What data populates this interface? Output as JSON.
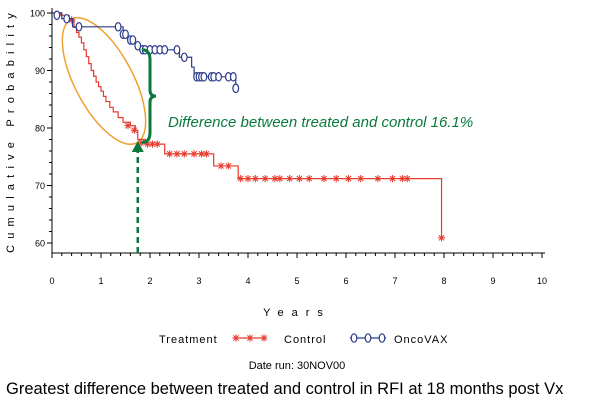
{
  "chart_data": {
    "type": "line",
    "chart_kind": "kaplan-meier step survival curve",
    "ylabel": "Cumulative Probability",
    "xlabel": "Years",
    "xlim": [
      0,
      10
    ],
    "ylim": [
      60,
      100
    ],
    "x_ticks": [
      "0",
      "1",
      "2",
      "3",
      "4",
      "5",
      "6",
      "7",
      "8",
      "9",
      "10"
    ],
    "y_ticks": [
      "60",
      "70",
      "80",
      "90",
      "100"
    ],
    "grid": false,
    "legend": {
      "placement": "bottom",
      "title": "Treatment",
      "entries": [
        "Control",
        "OncoVAX"
      ]
    },
    "series": [
      {
        "name": "Control",
        "color": "#e8392b",
        "marker": "asterisk",
        "steps": [
          [
            0,
            100
          ],
          [
            0.18,
            99.6
          ],
          [
            0.35,
            98.8
          ],
          [
            0.45,
            97.5
          ],
          [
            0.5,
            96.6
          ],
          [
            0.55,
            95.8
          ],
          [
            0.6,
            94.8
          ],
          [
            0.65,
            93.6
          ],
          [
            0.7,
            92.4
          ],
          [
            0.75,
            91.2
          ],
          [
            0.8,
            90.0
          ],
          [
            0.85,
            89.0
          ],
          [
            0.9,
            88.0
          ],
          [
            0.95,
            87.2
          ],
          [
            1.0,
            86.4
          ],
          [
            1.05,
            85.5
          ],
          [
            1.1,
            84.6
          ],
          [
            1.18,
            83.6
          ],
          [
            1.25,
            82.8
          ],
          [
            1.35,
            81.8
          ],
          [
            1.45,
            81.0
          ],
          [
            1.6,
            80.4
          ],
          [
            1.7,
            79.6
          ],
          [
            1.75,
            78.0
          ],
          [
            1.9,
            77.2
          ],
          [
            2.3,
            75.5
          ],
          [
            3.3,
            73.4
          ],
          [
            3.8,
            71.2
          ],
          [
            7.95,
            60.9
          ]
        ],
        "censored": [
          [
            0.4,
            98.8
          ],
          [
            1.55,
            80.4
          ],
          [
            1.68,
            79.6
          ],
          [
            1.82,
            77.4
          ],
          [
            1.95,
            77.2
          ],
          [
            2.05,
            77.2
          ],
          [
            2.15,
            77.2
          ],
          [
            2.4,
            75.5
          ],
          [
            2.55,
            75.5
          ],
          [
            2.7,
            75.5
          ],
          [
            2.9,
            75.5
          ],
          [
            3.05,
            75.5
          ],
          [
            3.15,
            75.5
          ],
          [
            3.45,
            73.4
          ],
          [
            3.6,
            73.4
          ],
          [
            3.85,
            71.2
          ],
          [
            4.0,
            71.2
          ],
          [
            4.15,
            71.2
          ],
          [
            4.35,
            71.2
          ],
          [
            4.55,
            71.2
          ],
          [
            4.65,
            71.2
          ],
          [
            4.85,
            71.2
          ],
          [
            5.05,
            71.2
          ],
          [
            5.25,
            71.2
          ],
          [
            5.55,
            71.2
          ],
          [
            5.8,
            71.2
          ],
          [
            6.05,
            71.2
          ],
          [
            6.3,
            71.2
          ],
          [
            6.65,
            71.2
          ],
          [
            6.95,
            71.2
          ],
          [
            7.15,
            71.2
          ],
          [
            7.25,
            71.2
          ]
        ],
        "end_x": 7.95,
        "end_y": 60.9
      },
      {
        "name": "OncoVAX",
        "color": "#2b3a8c",
        "marker": "open-circle",
        "steps": [
          [
            0,
            100
          ],
          [
            0.2,
            99.0
          ],
          [
            0.42,
            97.6
          ],
          [
            1.45,
            96.3
          ],
          [
            1.55,
            95.3
          ],
          [
            1.7,
            94.3
          ],
          [
            1.8,
            93.6
          ],
          [
            2.6,
            92.3
          ],
          [
            2.85,
            90.6
          ],
          [
            2.9,
            88.9
          ],
          [
            3.75,
            86.9
          ]
        ],
        "censored": [
          [
            0.1,
            99.6
          ],
          [
            0.3,
            99.0
          ],
          [
            0.55,
            97.6
          ],
          [
            1.35,
            97.6
          ],
          [
            1.45,
            96.3
          ],
          [
            1.5,
            96.3
          ],
          [
            1.6,
            95.3
          ],
          [
            1.65,
            95.3
          ],
          [
            1.75,
            94.3
          ],
          [
            1.85,
            93.6
          ],
          [
            1.9,
            93.6
          ],
          [
            2.0,
            93.6
          ],
          [
            2.1,
            93.6
          ],
          [
            2.2,
            93.6
          ],
          [
            2.3,
            93.6
          ],
          [
            2.55,
            93.6
          ],
          [
            2.7,
            92.3
          ],
          [
            2.95,
            88.9
          ],
          [
            3.0,
            88.9
          ],
          [
            3.05,
            88.9
          ],
          [
            3.1,
            88.9
          ],
          [
            3.25,
            88.9
          ],
          [
            3.3,
            88.9
          ],
          [
            3.4,
            88.9
          ],
          [
            3.6,
            88.9
          ],
          [
            3.7,
            88.9
          ],
          [
            3.75,
            86.9
          ]
        ],
        "end_x": 3.75,
        "end_y": 86.9
      }
    ],
    "annotations": {
      "difference_text": "Difference between treated and control 16.1%",
      "marker_x": 1.75,
      "brace_top": 93.6,
      "brace_bottom": 77.5
    },
    "colors": {
      "annotation": "#0a7a3c",
      "ellipse": "#f0a030",
      "axis": "#000000"
    }
  },
  "date_run": "Date run: 30NOV00",
  "caption": "Greatest difference between treated and control in RFI at 18 months post Vx"
}
